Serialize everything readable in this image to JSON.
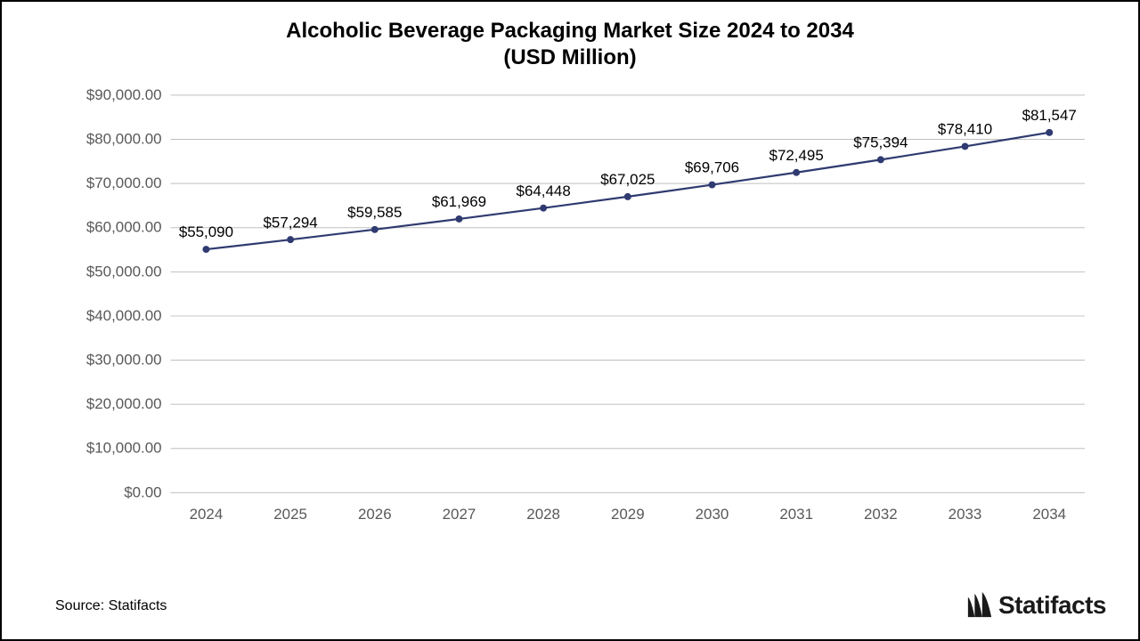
{
  "title": {
    "line1": "Alcoholic Beverage Packaging Market Size 2024 to 2034",
    "line2": "(USD Million)",
    "fontsize": 24,
    "fontweight": 700,
    "color": "#000000"
  },
  "chart": {
    "type": "line",
    "background_color": "#ffffff",
    "grid_color": "#bfbfbf",
    "line_color": "#2f3a70",
    "marker_color": "#2f3a70",
    "marker_radius": 4,
    "line_width": 2.2,
    "x_categories": [
      "2024",
      "2025",
      "2026",
      "2027",
      "2028",
      "2029",
      "2030",
      "2031",
      "2032",
      "2033",
      "2034"
    ],
    "y_values": [
      55090,
      57294,
      59585,
      61969,
      64448,
      67025,
      69706,
      72495,
      75394,
      78410,
      81547
    ],
    "data_labels": [
      "$55,090",
      "$57,294",
      "$59,585",
      "$61,969",
      "$64,448",
      "$67,025",
      "$69,706",
      "$72,495",
      "$75,394",
      "$78,410",
      "$81,547"
    ],
    "y_ticks": [
      0,
      10000,
      20000,
      30000,
      40000,
      50000,
      60000,
      70000,
      80000,
      90000
    ],
    "y_tick_labels": [
      "$0.00",
      "$10,000.00",
      "$20,000.00",
      "$30,000.00",
      "$40,000.00",
      "$50,000.00",
      "$60,000.00",
      "$70,000.00",
      "$80,000.00",
      "$90,000.00"
    ],
    "ylim": [
      0,
      90000
    ],
    "axis_label_fontsize": 17,
    "data_label_fontsize": 17,
    "axis_label_color": "#595959"
  },
  "footer": {
    "source_text": "Source: Statifacts"
  },
  "brand": {
    "name": "Statifacts",
    "icon_color": "#1a1a1a"
  }
}
